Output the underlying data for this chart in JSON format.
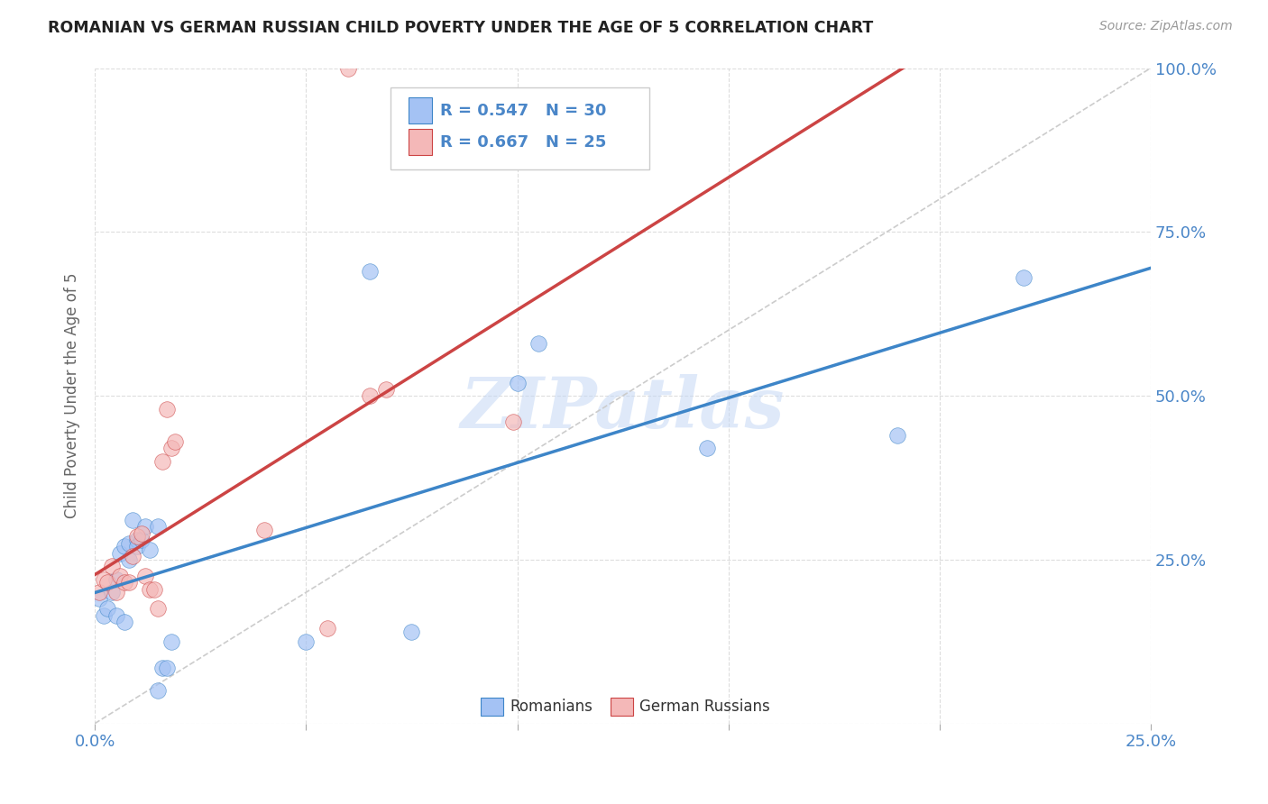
{
  "title": "ROMANIAN VS GERMAN RUSSIAN CHILD POVERTY UNDER THE AGE OF 5 CORRELATION CHART",
  "source": "Source: ZipAtlas.com",
  "ylabel": "Child Poverty Under the Age of 5",
  "xlim": [
    0.0,
    0.25
  ],
  "ylim": [
    0.0,
    1.0
  ],
  "xticks": [
    0.0,
    0.05,
    0.1,
    0.15,
    0.2,
    0.25
  ],
  "yticks": [
    0.0,
    0.25,
    0.5,
    0.75,
    1.0
  ],
  "blue_color": "#a4c2f4",
  "pink_color": "#f4b8b8",
  "blue_line_color": "#3d85c8",
  "pink_line_color": "#cc4444",
  "ref_line_color": "#cccccc",
  "tick_label_color": "#4a86c8",
  "blue_R": 0.547,
  "blue_N": 30,
  "pink_R": 0.667,
  "pink_N": 25,
  "blue_points_x": [
    0.001,
    0.002,
    0.003,
    0.004,
    0.005,
    0.005,
    0.006,
    0.007,
    0.007,
    0.008,
    0.008,
    0.009,
    0.01,
    0.01,
    0.011,
    0.012,
    0.013,
    0.015,
    0.015,
    0.016,
    0.017,
    0.018,
    0.05,
    0.065,
    0.075,
    0.1,
    0.105,
    0.145,
    0.19,
    0.22
  ],
  "blue_points_y": [
    0.19,
    0.165,
    0.175,
    0.2,
    0.22,
    0.165,
    0.26,
    0.27,
    0.155,
    0.25,
    0.275,
    0.31,
    0.28,
    0.27,
    0.28,
    0.3,
    0.265,
    0.3,
    0.05,
    0.085,
    0.085,
    0.125,
    0.125,
    0.69,
    0.14,
    0.52,
    0.58,
    0.42,
    0.44,
    0.68
  ],
  "pink_points_x": [
    0.001,
    0.002,
    0.003,
    0.004,
    0.005,
    0.006,
    0.007,
    0.008,
    0.009,
    0.01,
    0.011,
    0.012,
    0.013,
    0.014,
    0.015,
    0.016,
    0.017,
    0.018,
    0.019,
    0.04,
    0.055,
    0.06,
    0.065,
    0.069,
    0.099
  ],
  "pink_points_y": [
    0.2,
    0.22,
    0.215,
    0.24,
    0.2,
    0.225,
    0.215,
    0.215,
    0.255,
    0.285,
    0.29,
    0.225,
    0.205,
    0.205,
    0.175,
    0.4,
    0.48,
    0.42,
    0.43,
    0.295,
    0.145,
    1.0,
    0.5,
    0.51,
    0.46
  ],
  "watermark": "ZIPatlas",
  "bg_color": "#ffffff",
  "grid_color": "#dddddd"
}
